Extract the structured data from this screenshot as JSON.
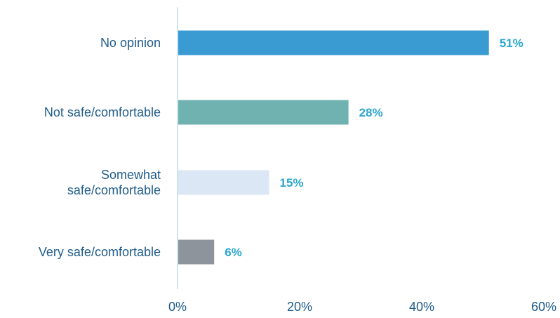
{
  "chart_data": {
    "type": "bar",
    "orientation": "horizontal",
    "categories": [
      [
        "No opinion"
      ],
      [
        "Not safe/comfortable"
      ],
      [
        "Somewhat",
        "safe/comfortable"
      ],
      [
        "Very safe/comfortable"
      ]
    ],
    "values": [
      51,
      28,
      15,
      6
    ],
    "data_labels": [
      "51%",
      "28%",
      "15%",
      "6%"
    ],
    "bar_colors": [
      "#3a9bd3",
      "#6fb2b0",
      "#dbe7f4",
      "#8e949b"
    ],
    "xlim": [
      0,
      60
    ],
    "x_ticks": [
      0,
      20,
      40,
      60
    ],
    "x_tick_labels": [
      "0%",
      "20%",
      "40%",
      "60%"
    ],
    "axis_color": "#cfe6f2",
    "label_color": "#1f5c8a",
    "data_label_color": "#2aa6cf",
    "grid": false,
    "legend": "none",
    "title": "",
    "xlabel": "",
    "ylabel": ""
  }
}
